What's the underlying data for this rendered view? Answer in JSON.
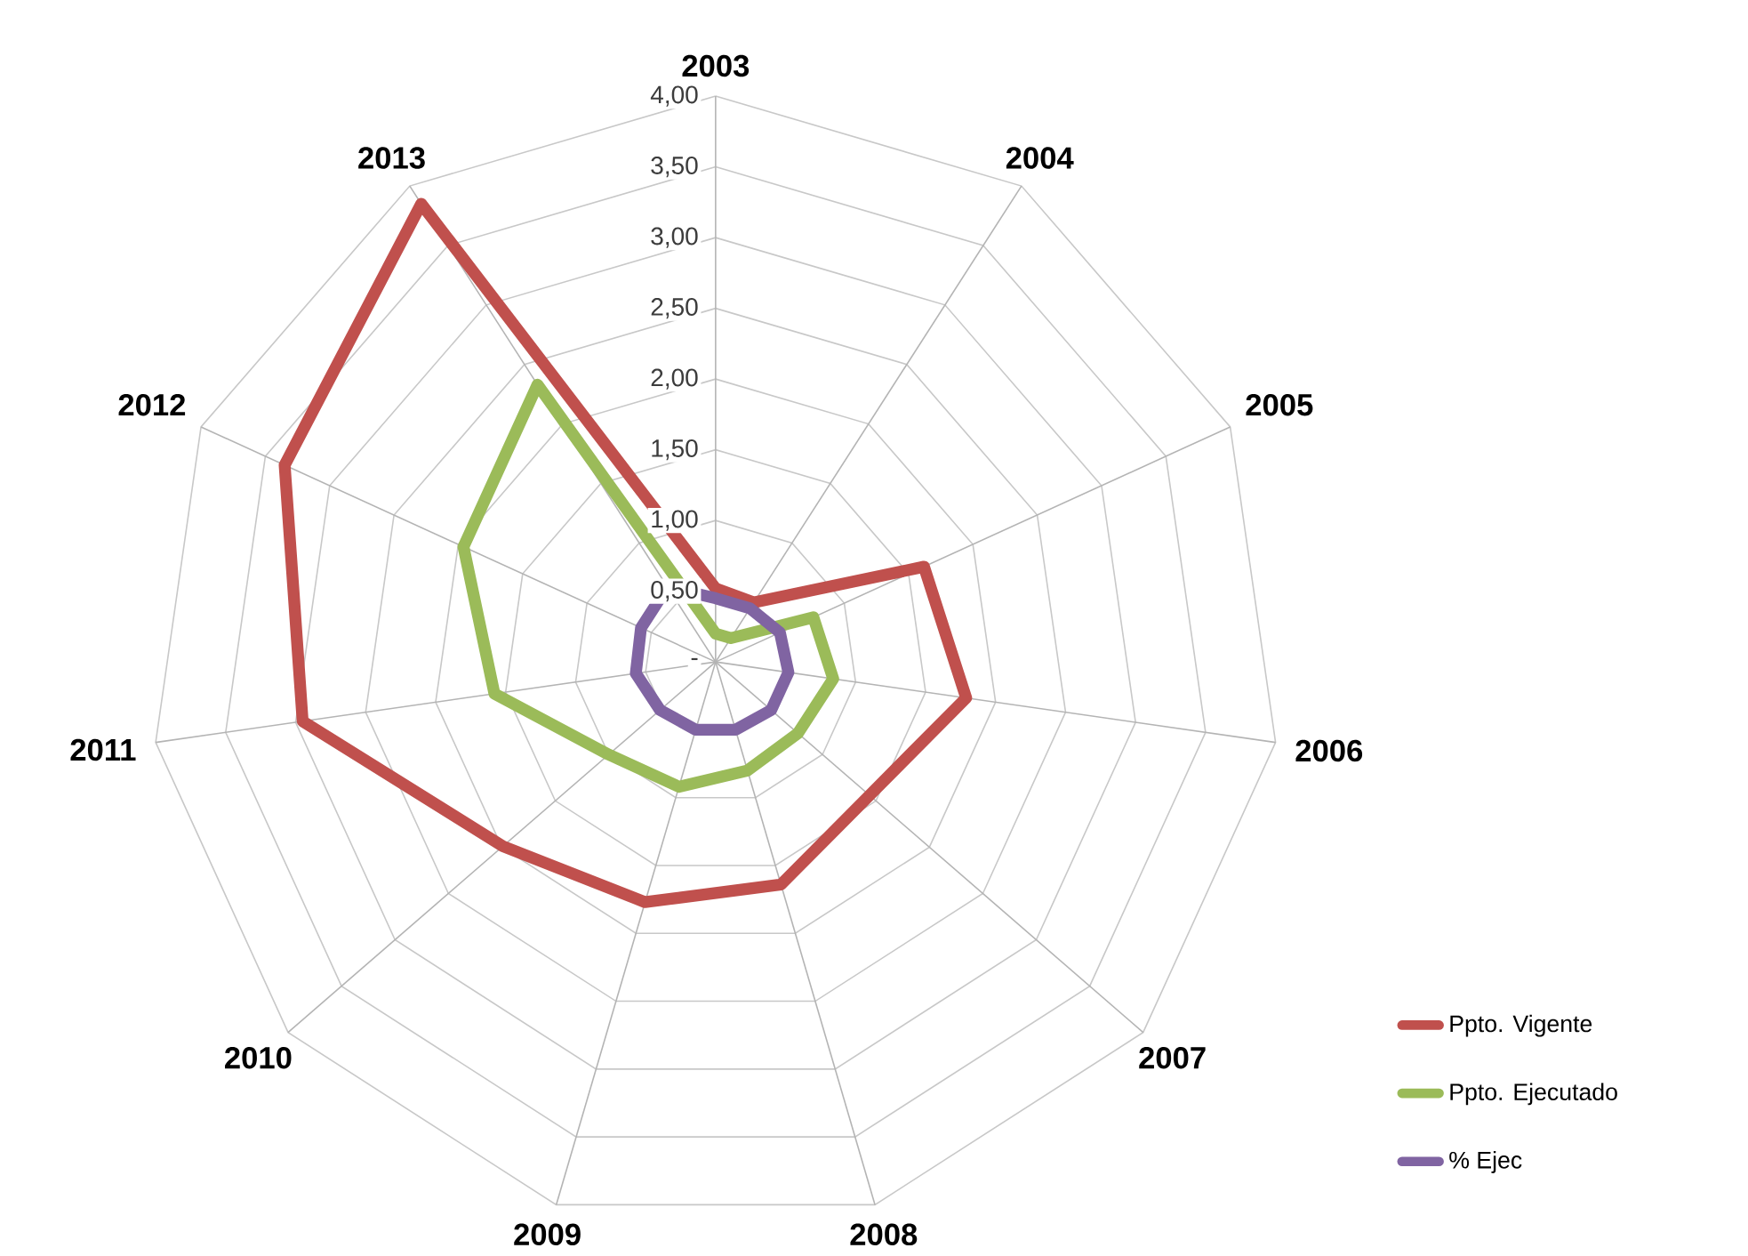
{
  "chart_data": {
    "type": "radar",
    "categories": [
      "2003",
      "2004",
      "2005",
      "2006",
      "2007",
      "2008",
      "2009",
      "2010",
      "2011",
      "2012",
      "2013"
    ],
    "ylim": [
      0,
      4
    ],
    "yticks": [
      {
        "value": 0,
        "label": "-"
      },
      {
        "value": 0.5,
        "label": "0,50"
      },
      {
        "value": 1,
        "label": "1,00"
      },
      {
        "value": 1.5,
        "label": "1,50"
      },
      {
        "value": 2,
        "label": "2,00"
      },
      {
        "value": 2.5,
        "label": "2,50"
      },
      {
        "value": 3,
        "label": "3,00"
      },
      {
        "value": 3.5,
        "label": "3,50"
      },
      {
        "value": 4,
        "label": "4,00"
      }
    ],
    "grid": true,
    "legend": "bottom right",
    "series": [
      {
        "name": "Ppto. Vigente",
        "color": "#c0504d",
        "values": [
          0.52,
          0.5,
          1.62,
          1.79,
          1.44,
          1.64,
          1.77,
          1.99,
          2.95,
          3.35,
          3.85
        ]
      },
      {
        "name": "Ppto. Ejecutado",
        "color": "#9bbb59",
        "values": [
          0.2,
          0.2,
          0.76,
          0.84,
          0.77,
          0.8,
          0.92,
          1.0,
          1.58,
          1.96,
          2.33
        ]
      },
      {
        "name": "% Ejec",
        "color": "#8064a2",
        "values": [
          0.45,
          0.45,
          0.5,
          0.52,
          0.52,
          0.5,
          0.5,
          0.52,
          0.57,
          0.58,
          0.63
        ]
      }
    ]
  }
}
